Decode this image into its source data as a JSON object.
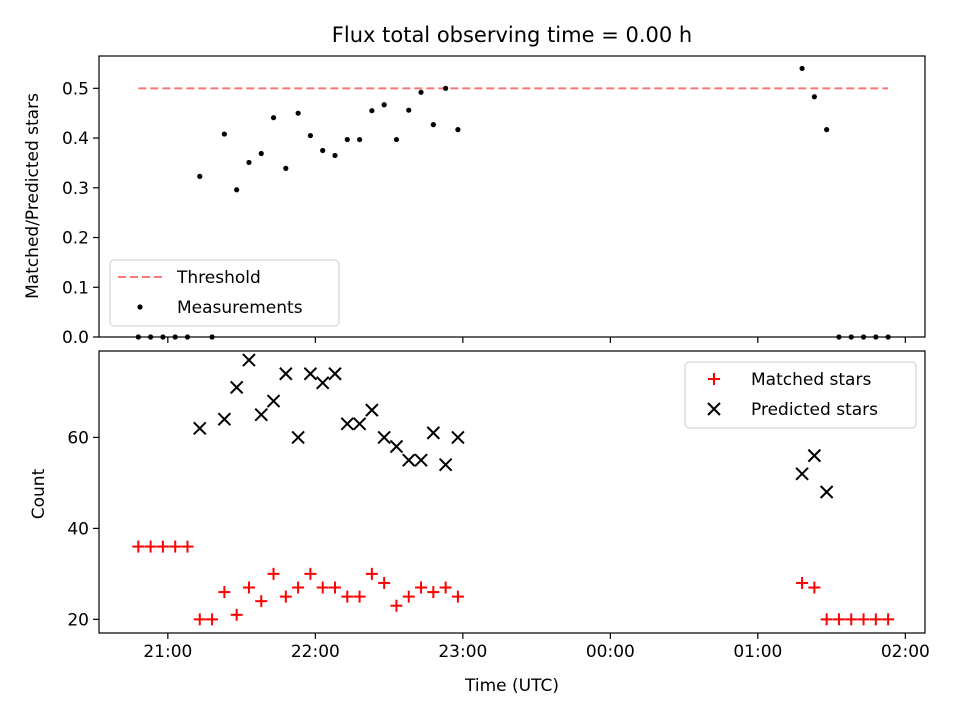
{
  "chart_data": [
    {
      "type": "scatter",
      "title": "Flux total observing time = 0.00 h",
      "xlabel": "",
      "ylabel": "Matched/Predicted stars",
      "ylim": [
        0,
        0.565
      ],
      "yticks": [
        "0.0",
        "0.1",
        "0.2",
        "0.3",
        "0.4",
        "0.5"
      ],
      "xlim": [
        "20:32",
        "02:08"
      ],
      "xticks": [
        "21:00",
        "22:00",
        "23:00",
        "00:00",
        "01:00",
        "02:00"
      ],
      "grid": false,
      "legend_position": "lower-left",
      "threshold": {
        "name": "Threshold",
        "value": 0.5,
        "x_start": "20:48",
        "x_end": "01:53",
        "color": "#f87878"
      },
      "series": [
        {
          "name": "Measurements",
          "color": "#000000",
          "marker": "dot",
          "points": [
            [
              "20:48",
              0.0
            ],
            [
              "20:53",
              0.0
            ],
            [
              "20:58",
              0.0
            ],
            [
              "21:03",
              0.0
            ],
            [
              "21:08",
              0.0
            ],
            [
              "21:13",
              0.323
            ],
            [
              "21:18",
              0.0
            ],
            [
              "21:23",
              0.408
            ],
            [
              "21:28",
              0.296
            ],
            [
              "21:33",
              0.351
            ],
            [
              "21:38",
              0.369
            ],
            [
              "21:43",
              0.441
            ],
            [
              "21:48",
              0.339
            ],
            [
              "21:53",
              0.45
            ],
            [
              "21:58",
              0.405
            ],
            [
              "22:03",
              0.375
            ],
            [
              "22:08",
              0.365
            ],
            [
              "22:13",
              0.397
            ],
            [
              "22:18",
              0.397
            ],
            [
              "22:23",
              0.455
            ],
            [
              "22:28",
              0.467
            ],
            [
              "22:33",
              0.397
            ],
            [
              "22:38",
              0.456
            ],
            [
              "22:43",
              0.492
            ],
            [
              "22:48",
              0.427
            ],
            [
              "22:53",
              0.5
            ],
            [
              "22:58",
              0.417
            ],
            [
              "01:18",
              0.54
            ],
            [
              "01:23",
              0.483
            ],
            [
              "01:28",
              0.417
            ],
            [
              "01:33",
              0.0
            ],
            [
              "01:38",
              0.0
            ],
            [
              "01:43",
              0.0
            ],
            [
              "01:48",
              0.0
            ],
            [
              "01:53",
              0.0
            ]
          ]
        }
      ]
    },
    {
      "type": "scatter",
      "title": "",
      "xlabel": "Time (UTC)",
      "ylabel": "Count",
      "ylim": [
        17,
        79
      ],
      "yticks": [
        "20",
        "40",
        "60"
      ],
      "xlim": [
        "20:32",
        "02:08"
      ],
      "xticks": [
        "21:00",
        "22:00",
        "23:00",
        "00:00",
        "01:00",
        "02:00"
      ],
      "grid": false,
      "legend_position": "top-right",
      "series": [
        {
          "name": "Matched stars",
          "color": "#ff0000",
          "marker": "plus",
          "points": [
            [
              "20:48",
              36
            ],
            [
              "20:53",
              36
            ],
            [
              "20:58",
              36
            ],
            [
              "21:03",
              36
            ],
            [
              "21:08",
              36
            ],
            [
              "21:13",
              20
            ],
            [
              "21:18",
              20
            ],
            [
              "21:23",
              26
            ],
            [
              "21:28",
              21
            ],
            [
              "21:33",
              27
            ],
            [
              "21:38",
              24
            ],
            [
              "21:43",
              30
            ],
            [
              "21:48",
              25
            ],
            [
              "21:53",
              27
            ],
            [
              "21:58",
              30
            ],
            [
              "22:03",
              27
            ],
            [
              "22:08",
              27
            ],
            [
              "22:13",
              25
            ],
            [
              "22:18",
              25
            ],
            [
              "22:23",
              30
            ],
            [
              "22:28",
              28
            ],
            [
              "22:33",
              23
            ],
            [
              "22:38",
              25
            ],
            [
              "22:43",
              27
            ],
            [
              "22:48",
              26
            ],
            [
              "22:53",
              27
            ],
            [
              "22:58",
              25
            ],
            [
              "01:18",
              28
            ],
            [
              "01:23",
              27
            ],
            [
              "01:28",
              20
            ],
            [
              "01:33",
              20
            ],
            [
              "01:38",
              20
            ],
            [
              "01:43",
              20
            ],
            [
              "01:48",
              20
            ],
            [
              "01:53",
              20
            ]
          ]
        },
        {
          "name": "Predicted stars",
          "color": "#000000",
          "marker": "x",
          "points": [
            [
              "21:13",
              62
            ],
            [
              "21:23",
              64
            ],
            [
              "21:28",
              71
            ],
            [
              "21:33",
              77
            ],
            [
              "21:38",
              65
            ],
            [
              "21:43",
              68
            ],
            [
              "21:48",
              74
            ],
            [
              "21:53",
              60
            ],
            [
              "21:58",
              74
            ],
            [
              "22:03",
              72
            ],
            [
              "22:08",
              74
            ],
            [
              "22:13",
              63
            ],
            [
              "22:18",
              63
            ],
            [
              "22:23",
              66
            ],
            [
              "22:28",
              60
            ],
            [
              "22:33",
              58
            ],
            [
              "22:38",
              55
            ],
            [
              "22:43",
              55
            ],
            [
              "22:48",
              61
            ],
            [
              "22:53",
              54
            ],
            [
              "22:58",
              60
            ],
            [
              "01:18",
              52
            ],
            [
              "01:23",
              56
            ],
            [
              "01:28",
              48
            ]
          ]
        }
      ]
    }
  ]
}
